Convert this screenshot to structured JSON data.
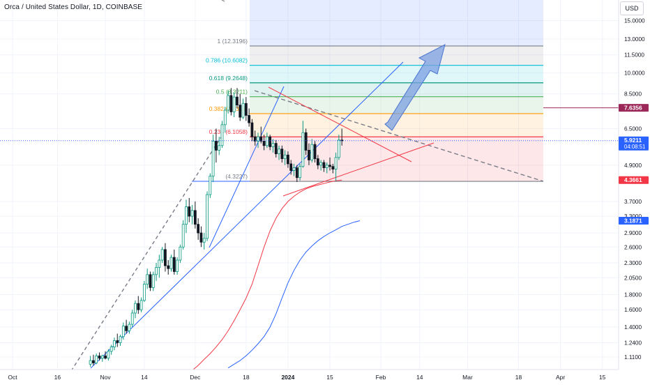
{
  "header": {
    "symbol_title": "Orca / United States Dollar, 1D, COINBASE",
    "currency": "USD"
  },
  "colors": {
    "up": "#089981",
    "down": "#131722",
    "accent_blue": "#2962ff",
    "ma_red": "#f23645",
    "ma_blue": "#2962ff",
    "fib_red": "#f23645",
    "fib_orange": "#ff9800",
    "fib_green": "#4caf50",
    "fib_teal": "#089981",
    "fib_cyan": "#00bcd4",
    "fib_gray": "#787b86",
    "fib_blue": "#2962ff"
  },
  "chart_data": {
    "type": "candlestick",
    "y_scale": "log",
    "ylim": [
      1.0,
      17.8
    ],
    "x_tick_labels": [
      "Oct",
      "16",
      "Nov",
      "14",
      "Dec",
      "18",
      "2024",
      "15",
      "Feb",
      "14",
      "Mar",
      "18",
      "Apr",
      "15"
    ],
    "y_tick_labels": [
      15.0,
      13.0,
      11.5,
      10.0,
      8.5,
      6.5,
      4.9,
      3.7,
      3.3,
      2.9,
      2.6,
      2.3,
      2.05,
      1.8,
      1.6,
      1.4,
      1.24,
      1.11
    ],
    "y_tick_text": [
      "15.0000",
      "13.0000",
      "11.5000",
      "10.0000",
      "8.5000",
      "6.5000",
      "4.9000",
      "3.7000",
      "3.3000",
      "2.9000",
      "2.6000",
      "2.3000",
      "2.0500",
      "1.8000",
      "1.6000",
      "1.4000",
      "1.2400",
      "1.1100"
    ],
    "fib_levels": [
      {
        "ratio": "0",
        "price": 4.3227,
        "label": "(4.3227)",
        "color": "#787b86"
      },
      {
        "ratio": "0.236",
        "price": 6.1,
        "label": "0.236 (6.1058)",
        "color": "#f23645"
      },
      {
        "ratio": "0.382",
        "price": 7.3,
        "label": "0.382 (7.3315)",
        "color": "#ff9800"
      },
      {
        "ratio": "0.5",
        "price": 8.3211,
        "label": "0.5 (8.3211)",
        "color": "#4caf50"
      },
      {
        "ratio": "0.618",
        "price": 9.2648,
        "label": "0.618 (9.2648)",
        "color": "#089981"
      },
      {
        "ratio": "0.786",
        "price": 10.6082,
        "label": "0.786 (10.6082)",
        "color": "#00bcd4"
      },
      {
        "ratio": "1",
        "price": 12.3196,
        "label": "1 (12.3196)",
        "color": "#787b86"
      },
      {
        "ratio": "1.618",
        "price": 17.7,
        "label": "",
        "color": "#2962ff"
      }
    ],
    "price_labels": [
      {
        "text": "7.6356",
        "price": 7.6356,
        "bg": "#9c2759",
        "kind": "alert"
      },
      {
        "text": "5.9211",
        "subtext": "04:08:51",
        "price": 5.9211,
        "bg": "#2962ff",
        "kind": "last"
      },
      {
        "text": "4.3661",
        "price": 4.3661,
        "bg": "#f23645",
        "kind": "ma"
      },
      {
        "text": "3.1871",
        "price": 3.1871,
        "bg": "#2962ff",
        "kind": "ma"
      }
    ],
    "candles": [
      {
        "d": 26,
        "o": 1.05,
        "h": 1.12,
        "l": 1.03,
        "c": 1.08
      },
      {
        "d": 27,
        "o": 1.08,
        "h": 1.13,
        "l": 1.04,
        "c": 1.06
      },
      {
        "d": 28,
        "o": 1.06,
        "h": 1.14,
        "l": 1.05,
        "c": 1.12
      },
      {
        "d": 29,
        "o": 1.12,
        "h": 1.15,
        "l": 1.08,
        "c": 1.1
      },
      {
        "d": 30,
        "o": 1.1,
        "h": 1.13,
        "l": 1.07,
        "c": 1.12
      },
      {
        "d": 31,
        "o": 1.12,
        "h": 1.16,
        "l": 1.09,
        "c": 1.1
      },
      {
        "d": 32,
        "o": 1.1,
        "h": 1.18,
        "l": 1.08,
        "c": 1.16
      },
      {
        "d": 33,
        "o": 1.16,
        "h": 1.22,
        "l": 1.13,
        "c": 1.2
      },
      {
        "d": 34,
        "o": 1.2,
        "h": 1.29,
        "l": 1.17,
        "c": 1.26
      },
      {
        "d": 35,
        "o": 1.26,
        "h": 1.33,
        "l": 1.2,
        "c": 1.24
      },
      {
        "d": 36,
        "o": 1.24,
        "h": 1.32,
        "l": 1.21,
        "c": 1.3
      },
      {
        "d": 37,
        "o": 1.3,
        "h": 1.45,
        "l": 1.27,
        "c": 1.41
      },
      {
        "d": 38,
        "o": 1.41,
        "h": 1.48,
        "l": 1.33,
        "c": 1.36
      },
      {
        "d": 39,
        "o": 1.36,
        "h": 1.46,
        "l": 1.33,
        "c": 1.43
      },
      {
        "d": 40,
        "o": 1.43,
        "h": 1.6,
        "l": 1.4,
        "c": 1.56
      },
      {
        "d": 41,
        "o": 1.56,
        "h": 1.72,
        "l": 1.5,
        "c": 1.68
      },
      {
        "d": 42,
        "o": 1.68,
        "h": 1.78,
        "l": 1.55,
        "c": 1.6
      },
      {
        "d": 43,
        "o": 1.6,
        "h": 1.76,
        "l": 1.57,
        "c": 1.72
      },
      {
        "d": 44,
        "o": 1.72,
        "h": 2.0,
        "l": 1.7,
        "c": 1.95
      },
      {
        "d": 45,
        "o": 1.95,
        "h": 2.2,
        "l": 1.88,
        "c": 2.1
      },
      {
        "d": 46,
        "o": 2.1,
        "h": 2.15,
        "l": 1.85,
        "c": 1.9
      },
      {
        "d": 47,
        "o": 1.9,
        "h": 2.15,
        "l": 1.85,
        "c": 2.1
      },
      {
        "d": 48,
        "o": 2.1,
        "h": 2.3,
        "l": 2.0,
        "c": 2.22
      },
      {
        "d": 49,
        "o": 2.22,
        "h": 2.45,
        "l": 2.05,
        "c": 2.35
      },
      {
        "d": 50,
        "o": 2.35,
        "h": 2.6,
        "l": 2.3,
        "c": 2.55
      },
      {
        "d": 51,
        "o": 2.55,
        "h": 2.68,
        "l": 2.15,
        "c": 2.25
      },
      {
        "d": 52,
        "o": 2.25,
        "h": 2.35,
        "l": 2.1,
        "c": 2.2
      },
      {
        "d": 53,
        "o": 2.2,
        "h": 2.45,
        "l": 2.15,
        "c": 2.4
      },
      {
        "d": 54,
        "o": 2.4,
        "h": 2.55,
        "l": 2.1,
        "c": 2.15
      },
      {
        "d": 55,
        "o": 2.15,
        "h": 2.4,
        "l": 2.1,
        "c": 2.35
      },
      {
        "d": 56,
        "o": 2.35,
        "h": 2.65,
        "l": 2.3,
        "c": 2.6
      },
      {
        "d": 57,
        "o": 2.6,
        "h": 3.2,
        "l": 2.55,
        "c": 3.1
      },
      {
        "d": 58,
        "o": 3.1,
        "h": 3.75,
        "l": 2.9,
        "c": 3.55
      },
      {
        "d": 59,
        "o": 3.55,
        "h": 3.8,
        "l": 3.15,
        "c": 3.3
      },
      {
        "d": 60,
        "o": 3.3,
        "h": 3.6,
        "l": 3.1,
        "c": 3.45
      },
      {
        "d": 61,
        "o": 3.45,
        "h": 3.7,
        "l": 3.0,
        "c": 3.1
      },
      {
        "d": 62,
        "o": 3.1,
        "h": 3.25,
        "l": 2.75,
        "c": 2.9
      },
      {
        "d": 63,
        "o": 2.9,
        "h": 3.05,
        "l": 2.6,
        "c": 2.7
      },
      {
        "d": 64,
        "o": 2.7,
        "h": 2.9,
        "l": 2.55,
        "c": 2.78
      },
      {
        "d": 65,
        "o": 2.78,
        "h": 4.0,
        "l": 2.72,
        "c": 3.9
      },
      {
        "d": 66,
        "o": 3.9,
        "h": 4.6,
        "l": 3.8,
        "c": 4.5
      },
      {
        "d": 67,
        "o": 4.5,
        "h": 6.2,
        "l": 4.3,
        "c": 5.9
      },
      {
        "d": 68,
        "o": 5.9,
        "h": 6.5,
        "l": 5.0,
        "c": 5.5
      },
      {
        "d": 69,
        "o": 5.5,
        "h": 6.1,
        "l": 5.3,
        "c": 5.7
      },
      {
        "d": 70,
        "o": 5.7,
        "h": 6.9,
        "l": 5.6,
        "c": 6.7
      },
      {
        "d": 71,
        "o": 6.7,
        "h": 7.7,
        "l": 6.3,
        "c": 7.5
      },
      {
        "d": 72,
        "o": 7.5,
        "h": 8.7,
        "l": 7.3,
        "c": 8.4
      },
      {
        "d": 73,
        "o": 8.4,
        "h": 8.9,
        "l": 7.2,
        "c": 7.4
      },
      {
        "d": 74,
        "o": 7.4,
        "h": 8.6,
        "l": 7.1,
        "c": 8.3
      },
      {
        "d": 75,
        "o": 8.3,
        "h": 8.9,
        "l": 7.6,
        "c": 7.8
      },
      {
        "d": 76,
        "o": 7.8,
        "h": 8.5,
        "l": 6.9,
        "c": 7.1
      },
      {
        "d": 77,
        "o": 7.1,
        "h": 8.2,
        "l": 7.0,
        "c": 7.9
      },
      {
        "d": 78,
        "o": 7.9,
        "h": 8.3,
        "l": 6.9,
        "c": 7.2
      },
      {
        "d": 79,
        "o": 7.2,
        "h": 7.6,
        "l": 6.6,
        "c": 6.8
      },
      {
        "d": 80,
        "o": 6.8,
        "h": 7.0,
        "l": 5.9,
        "c": 6.1
      },
      {
        "d": 81,
        "o": 6.1,
        "h": 6.4,
        "l": 5.7,
        "c": 5.9
      },
      {
        "d": 82,
        "o": 5.9,
        "h": 6.3,
        "l": 5.6,
        "c": 6.1
      },
      {
        "d": 83,
        "o": 6.1,
        "h": 6.6,
        "l": 5.8,
        "c": 5.9
      },
      {
        "d": 84,
        "o": 5.9,
        "h": 6.2,
        "l": 5.5,
        "c": 5.7
      },
      {
        "d": 85,
        "o": 5.7,
        "h": 6.3,
        "l": 5.6,
        "c": 6.1
      },
      {
        "d": 86,
        "o": 6.1,
        "h": 6.2,
        "l": 5.5,
        "c": 5.65
      },
      {
        "d": 87,
        "o": 5.65,
        "h": 6.0,
        "l": 5.4,
        "c": 5.8
      },
      {
        "d": 88,
        "o": 5.8,
        "h": 5.95,
        "l": 5.2,
        "c": 5.35
      },
      {
        "d": 89,
        "o": 5.35,
        "h": 5.7,
        "l": 5.1,
        "c": 5.55
      },
      {
        "d": 90,
        "o": 5.55,
        "h": 5.7,
        "l": 5.0,
        "c": 5.15
      },
      {
        "d": 91,
        "o": 5.15,
        "h": 5.5,
        "l": 4.9,
        "c": 5.3
      },
      {
        "d": 92,
        "o": 5.3,
        "h": 5.45,
        "l": 4.8,
        "c": 4.95
      },
      {
        "d": 93,
        "o": 4.95,
        "h": 5.1,
        "l": 4.55,
        "c": 4.7
      },
      {
        "d": 94,
        "o": 4.7,
        "h": 4.95,
        "l": 4.5,
        "c": 4.8
      },
      {
        "d": 95,
        "o": 4.8,
        "h": 4.9,
        "l": 4.3,
        "c": 4.45
      },
      {
        "d": 96,
        "o": 4.45,
        "h": 4.95,
        "l": 4.35,
        "c": 4.85
      },
      {
        "d": 97,
        "o": 4.85,
        "h": 6.9,
        "l": 4.8,
        "c": 6.3
      },
      {
        "d": 98,
        "o": 6.3,
        "h": 6.5,
        "l": 5.3,
        "c": 5.5
      },
      {
        "d": 99,
        "o": 5.5,
        "h": 5.8,
        "l": 4.9,
        "c": 5.1
      },
      {
        "d": 100,
        "o": 5.1,
        "h": 6.0,
        "l": 5.0,
        "c": 5.75
      },
      {
        "d": 101,
        "o": 5.75,
        "h": 5.9,
        "l": 5.0,
        "c": 5.15
      },
      {
        "d": 102,
        "o": 5.15,
        "h": 5.3,
        "l": 4.75,
        "c": 4.9
      },
      {
        "d": 103,
        "o": 4.9,
        "h": 5.1,
        "l": 4.7,
        "c": 5.0
      },
      {
        "d": 104,
        "o": 5.0,
        "h": 5.1,
        "l": 4.65,
        "c": 4.8
      },
      {
        "d": 105,
        "o": 4.8,
        "h": 5.0,
        "l": 4.6,
        "c": 4.9
      },
      {
        "d": 106,
        "o": 4.9,
        "h": 5.2,
        "l": 4.7,
        "c": 4.85
      },
      {
        "d": 107,
        "o": 4.85,
        "h": 4.95,
        "l": 4.6,
        "c": 4.75
      },
      {
        "d": 108,
        "o": 4.75,
        "h": 5.4,
        "l": 4.33,
        "c": 5.2
      },
      {
        "d": 109,
        "o": 5.2,
        "h": 6.2,
        "l": 5.1,
        "c": 5.95
      },
      {
        "d": 110,
        "o": 5.95,
        "h": 6.5,
        "l": 5.7,
        "c": 5.92
      }
    ],
    "ma_red": [
      [
        60,
        1.0
      ],
      [
        62,
        1.04
      ],
      [
        64,
        1.09
      ],
      [
        66,
        1.14
      ],
      [
        68,
        1.2
      ],
      [
        70,
        1.27
      ],
      [
        72,
        1.36
      ],
      [
        74,
        1.47
      ],
      [
        76,
        1.6
      ],
      [
        78,
        1.75
      ],
      [
        80,
        1.95
      ],
      [
        82,
        2.25
      ],
      [
        84,
        2.6
      ],
      [
        86,
        2.95
      ],
      [
        88,
        3.25
      ],
      [
        90,
        3.5
      ],
      [
        92,
        3.7
      ],
      [
        94,
        3.85
      ],
      [
        96,
        3.98
      ],
      [
        98,
        4.08
      ],
      [
        100,
        4.15
      ],
      [
        102,
        4.2
      ],
      [
        104,
        4.25
      ],
      [
        106,
        4.3
      ],
      [
        108,
        4.34
      ],
      [
        110,
        4.3661
      ]
    ],
    "ma_blue": [
      [
        72,
        1.02
      ],
      [
        74,
        1.05
      ],
      [
        76,
        1.08
      ],
      [
        78,
        1.12
      ],
      [
        80,
        1.17
      ],
      [
        82,
        1.23
      ],
      [
        84,
        1.3
      ],
      [
        86,
        1.4
      ],
      [
        88,
        1.55
      ],
      [
        90,
        1.75
      ],
      [
        92,
        1.97
      ],
      [
        94,
        2.17
      ],
      [
        96,
        2.35
      ],
      [
        98,
        2.5
      ],
      [
        100,
        2.62
      ],
      [
        102,
        2.73
      ],
      [
        104,
        2.82
      ],
      [
        106,
        2.9
      ],
      [
        108,
        2.97
      ],
      [
        110,
        3.05
      ],
      [
        112,
        3.1
      ],
      [
        114,
        3.15
      ],
      [
        116,
        3.1871
      ]
    ]
  }
}
